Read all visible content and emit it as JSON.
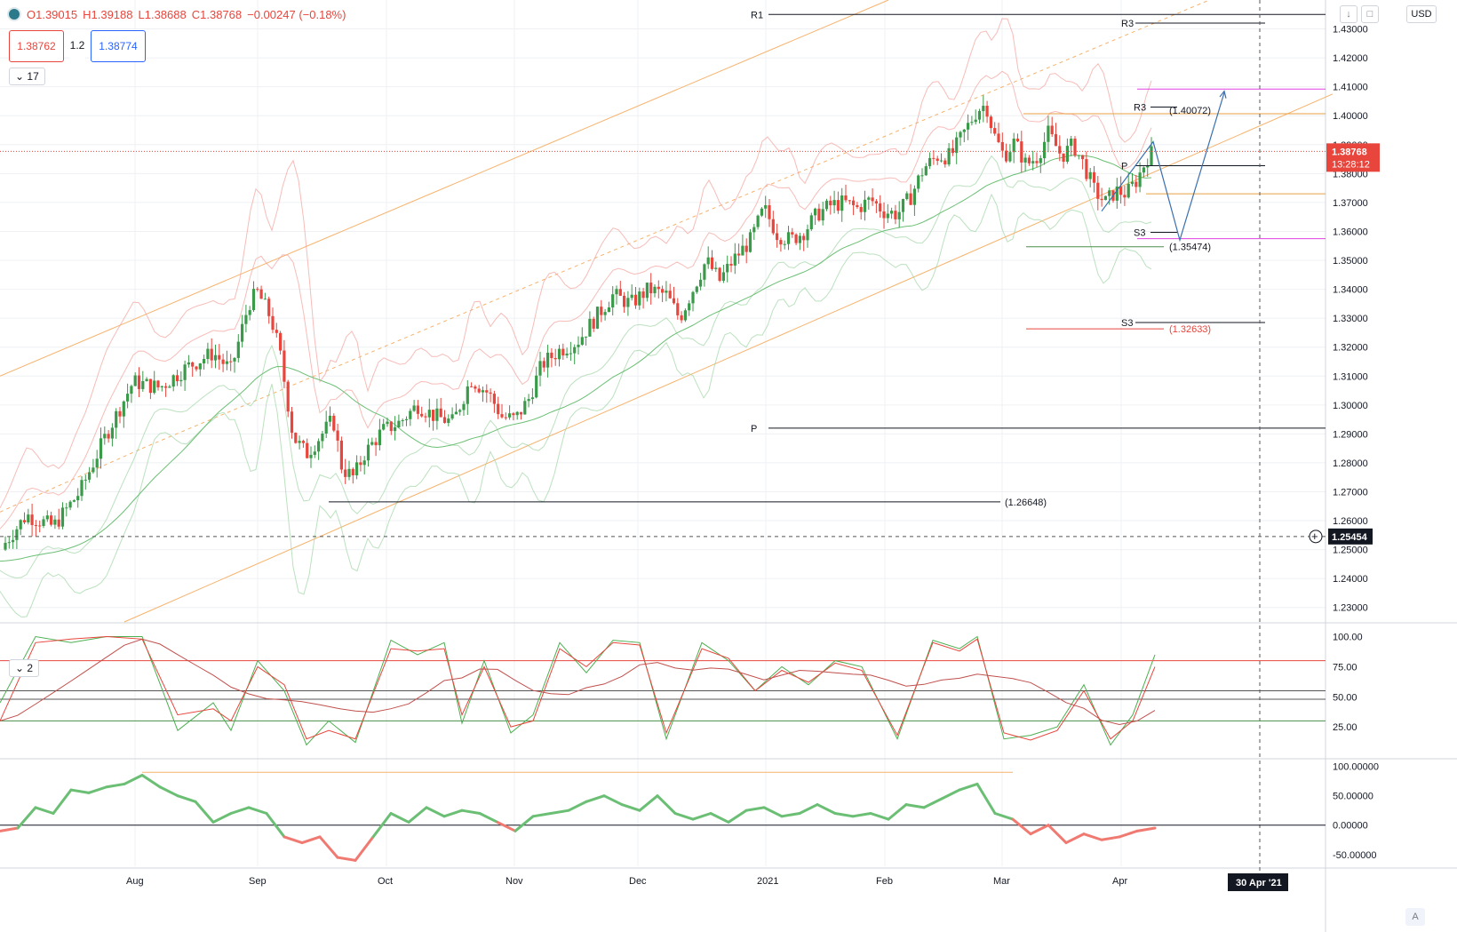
{
  "header": {
    "open": "O1.39015",
    "high": "H1.39188",
    "low": "L1.38688",
    "close": "C1.38768",
    "change": "−0.00247 (−0.18%)",
    "sell_price": "1.38762",
    "spread": "1.2",
    "buy_price": "1.38774",
    "indicator_count_main": "17",
    "indicator_count_sub": "2",
    "currency": "USD",
    "auto_label": "A"
  },
  "colors": {
    "up": "#3a9a4a",
    "down": "#e8453c",
    "accent": "#2962ff",
    "orange": "#f7b26b",
    "pink": "#e040e0"
  },
  "chart_data": [
    {
      "type": "candlestick",
      "ylim": [
        1.225,
        1.44
      ],
      "y_ticks": [
        "1.43000",
        "1.42000",
        "1.41000",
        "1.40000",
        "1.39000",
        "1.38000",
        "1.37000",
        "1.36000",
        "1.35000",
        "1.34000",
        "1.33000",
        "1.32000",
        "1.31000",
        "1.30000",
        "1.29000",
        "1.28000",
        "1.27000",
        "1.26000",
        "1.25000",
        "1.24000",
        "1.23000"
      ],
      "x_labels": [
        "Aug",
        "Sep",
        "Oct",
        "Nov",
        "Dec",
        "2021",
        "Feb",
        "Mar",
        "Apr"
      ],
      "x_label_positions": [
        152,
        290,
        435,
        579,
        718,
        862,
        996,
        1128,
        1262
      ],
      "crosshair_date": "30 Apr '21",
      "last_price": "1.38768",
      "countdown": "13:28:12",
      "crosshair_price": "1.25454",
      "close_path": [
        [
          0,
          1.25
        ],
        [
          30,
          1.262
        ],
        [
          60,
          1.258
        ],
        [
          90,
          1.27
        ],
        [
          120,
          1.29
        ],
        [
          150,
          1.308
        ],
        [
          180,
          1.306
        ],
        [
          210,
          1.313
        ],
        [
          240,
          1.318
        ],
        [
          260,
          1.312
        ],
        [
          280,
          1.335
        ],
        [
          290,
          1.339
        ],
        [
          305,
          1.33
        ],
        [
          315,
          1.318
        ],
        [
          330,
          1.289
        ],
        [
          345,
          1.283
        ],
        [
          360,
          1.289
        ],
        [
          375,
          1.295
        ],
        [
          385,
          1.278
        ],
        [
          398,
          1.275
        ],
        [
          410,
          1.283
        ],
        [
          430,
          1.291
        ],
        [
          450,
          1.294
        ],
        [
          470,
          1.3
        ],
        [
          490,
          1.296
        ],
        [
          510,
          1.294
        ],
        [
          530,
          1.309
        ],
        [
          550,
          1.304
        ],
        [
          565,
          1.296
        ],
        [
          580,
          1.295
        ],
        [
          595,
          1.302
        ],
        [
          610,
          1.314
        ],
        [
          630,
          1.319
        ],
        [
          650,
          1.322
        ],
        [
          670,
          1.33
        ],
        [
          690,
          1.338
        ],
        [
          710,
          1.335
        ],
        [
          730,
          1.34
        ],
        [
          750,
          1.338
        ],
        [
          765,
          1.33
        ],
        [
          780,
          1.34
        ],
        [
          795,
          1.35
        ],
        [
          810,
          1.343
        ],
        [
          825,
          1.35
        ],
        [
          845,
          1.357
        ],
        [
          860,
          1.368
        ],
        [
          875,
          1.359
        ],
        [
          890,
          1.357
        ],
        [
          905,
          1.36
        ],
        [
          920,
          1.366
        ],
        [
          935,
          1.369
        ],
        [
          950,
          1.37
        ],
        [
          965,
          1.368
        ],
        [
          980,
          1.371
        ],
        [
          995,
          1.367
        ],
        [
          1010,
          1.366
        ],
        [
          1025,
          1.372
        ],
        [
          1040,
          1.382
        ],
        [
          1055,
          1.386
        ],
        [
          1070,
          1.386
        ],
        [
          1085,
          1.394
        ],
        [
          1100,
          1.402
        ],
        [
          1110,
          1.404
        ],
        [
          1118,
          1.394
        ],
        [
          1130,
          1.386
        ],
        [
          1142,
          1.391
        ],
        [
          1155,
          1.383
        ],
        [
          1168,
          1.386
        ],
        [
          1180,
          1.394
        ],
        [
          1195,
          1.386
        ],
        [
          1208,
          1.39
        ],
        [
          1220,
          1.383
        ],
        [
          1232,
          1.374
        ],
        [
          1244,
          1.37
        ],
        [
          1256,
          1.374
        ],
        [
          1268,
          1.373
        ],
        [
          1280,
          1.378
        ],
        [
          1292,
          1.386
        ],
        [
          1300,
          1.388
        ]
      ],
      "levels": [
        {
          "label": "R1",
          "price": 1.435
        },
        {
          "label": "R3",
          "price": 1.432
        },
        {
          "label": "R3",
          "price": 1.403
        },
        {
          "label": "(1.40072)",
          "price": 1.4007
        },
        {
          "label": "P",
          "price": 1.3827
        },
        {
          "label": "S3",
          "price": 1.3597
        },
        {
          "label": "(1.35474)",
          "price": 1.3547
        },
        {
          "label": "S3",
          "price": 1.3285
        },
        {
          "label": "(1.32633)",
          "price": 1.3263
        },
        {
          "label": "P",
          "price": 1.292
        },
        {
          "label": "(1.26648)",
          "price": 1.2665
        }
      ]
    },
    {
      "type": "line",
      "name": "stochastic",
      "ylim": [
        0,
        110
      ],
      "y_ticks": [
        "100.00",
        "75.00",
        "50.00",
        "25.00"
      ],
      "k": [
        [
          0,
          45
        ],
        [
          40,
          100
        ],
        [
          80,
          95
        ],
        [
          120,
          100
        ],
        [
          160,
          100
        ],
        [
          200,
          22
        ],
        [
          240,
          45
        ],
        [
          260,
          22
        ],
        [
          290,
          80
        ],
        [
          320,
          55
        ],
        [
          345,
          10
        ],
        [
          370,
          30
        ],
        [
          400,
          12
        ],
        [
          440,
          97
        ],
        [
          470,
          85
        ],
        [
          500,
          95
        ],
        [
          520,
          28
        ],
        [
          545,
          80
        ],
        [
          575,
          20
        ],
        [
          600,
          35
        ],
        [
          630,
          95
        ],
        [
          660,
          70
        ],
        [
          690,
          97
        ],
        [
          720,
          95
        ],
        [
          750,
          15
        ],
        [
          790,
          95
        ],
        [
          820,
          80
        ],
        [
          850,
          55
        ],
        [
          880,
          75
        ],
        [
          910,
          60
        ],
        [
          940,
          80
        ],
        [
          970,
          75
        ],
        [
          1010,
          15
        ],
        [
          1050,
          97
        ],
        [
          1080,
          90
        ],
        [
          1100,
          100
        ],
        [
          1130,
          15
        ],
        [
          1160,
          18
        ],
        [
          1190,
          25
        ],
        [
          1220,
          60
        ],
        [
          1250,
          10
        ],
        [
          1275,
          35
        ],
        [
          1300,
          85
        ]
      ],
      "d": [
        [
          0,
          30
        ],
        [
          40,
          95
        ],
        [
          80,
          98
        ],
        [
          120,
          100
        ],
        [
          160,
          98
        ],
        [
          200,
          35
        ],
        [
          240,
          40
        ],
        [
          260,
          30
        ],
        [
          290,
          75
        ],
        [
          320,
          60
        ],
        [
          345,
          15
        ],
        [
          370,
          22
        ],
        [
          400,
          15
        ],
        [
          440,
          90
        ],
        [
          470,
          88
        ],
        [
          500,
          90
        ],
        [
          520,
          35
        ],
        [
          545,
          75
        ],
        [
          575,
          25
        ],
        [
          600,
          30
        ],
        [
          630,
          90
        ],
        [
          660,
          75
        ],
        [
          690,
          95
        ],
        [
          720,
          93
        ],
        [
          750,
          20
        ],
        [
          790,
          90
        ],
        [
          820,
          82
        ],
        [
          850,
          55
        ],
        [
          880,
          72
        ],
        [
          910,
          62
        ],
        [
          940,
          78
        ],
        [
          970,
          72
        ],
        [
          1010,
          18
        ],
        [
          1050,
          95
        ],
        [
          1080,
          88
        ],
        [
          1100,
          98
        ],
        [
          1130,
          20
        ],
        [
          1160,
          14
        ],
        [
          1190,
          22
        ],
        [
          1220,
          55
        ],
        [
          1250,
          15
        ],
        [
          1275,
          30
        ],
        [
          1300,
          75
        ]
      ]
    },
    {
      "type": "line",
      "name": "oscillator",
      "ylim": [
        -70,
        110
      ],
      "y_ticks": [
        "100.00000",
        "50.00000",
        "0.00000",
        "-50.00000"
      ],
      "values": [
        [
          0,
          -10
        ],
        [
          20,
          -5
        ],
        [
          40,
          30
        ],
        [
          60,
          20
        ],
        [
          80,
          60
        ],
        [
          100,
          55
        ],
        [
          120,
          65
        ],
        [
          140,
          70
        ],
        [
          160,
          85
        ],
        [
          180,
          65
        ],
        [
          200,
          50
        ],
        [
          220,
          40
        ],
        [
          240,
          5
        ],
        [
          260,
          20
        ],
        [
          280,
          30
        ],
        [
          300,
          20
        ],
        [
          320,
          -20
        ],
        [
          340,
          -30
        ],
        [
          360,
          -20
        ],
        [
          380,
          -55
        ],
        [
          400,
          -60
        ],
        [
          420,
          -20
        ],
        [
          440,
          20
        ],
        [
          460,
          5
        ],
        [
          480,
          30
        ],
        [
          500,
          15
        ],
        [
          520,
          25
        ],
        [
          540,
          20
        ],
        [
          560,
          5
        ],
        [
          580,
          -10
        ],
        [
          600,
          15
        ],
        [
          620,
          20
        ],
        [
          640,
          25
        ],
        [
          660,
          40
        ],
        [
          680,
          50
        ],
        [
          700,
          35
        ],
        [
          720,
          25
        ],
        [
          740,
          50
        ],
        [
          760,
          20
        ],
        [
          780,
          10
        ],
        [
          800,
          20
        ],
        [
          820,
          5
        ],
        [
          840,
          25
        ],
        [
          860,
          30
        ],
        [
          880,
          15
        ],
        [
          900,
          20
        ],
        [
          920,
          35
        ],
        [
          940,
          20
        ],
        [
          960,
          15
        ],
        [
          980,
          20
        ],
        [
          1000,
          10
        ],
        [
          1020,
          35
        ],
        [
          1040,
          30
        ],
        [
          1060,
          45
        ],
        [
          1080,
          60
        ],
        [
          1100,
          70
        ],
        [
          1120,
          20
        ],
        [
          1140,
          10
        ],
        [
          1160,
          -15
        ],
        [
          1180,
          0
        ],
        [
          1200,
          -30
        ],
        [
          1220,
          -15
        ],
        [
          1240,
          -25
        ],
        [
          1260,
          -20
        ],
        [
          1280,
          -10
        ],
        [
          1300,
          -5
        ]
      ]
    }
  ]
}
